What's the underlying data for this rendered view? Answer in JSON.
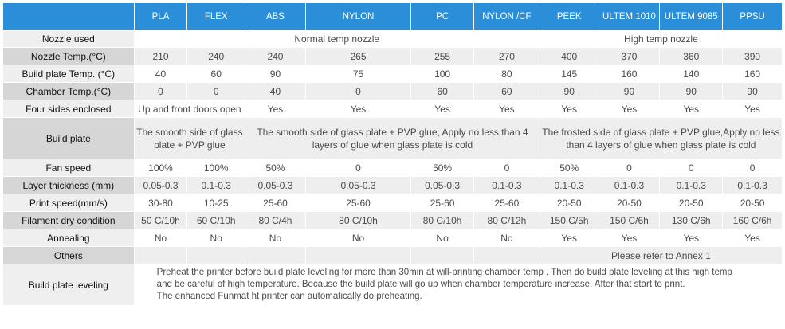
{
  "header": {
    "materials": [
      "PLA",
      "FLEX",
      "ABS",
      "NYLON",
      "PC",
      "NYLON /CF",
      "PEEK",
      "ULTEM 1010",
      "ULTEM 9085",
      "PPSU"
    ]
  },
  "rows": {
    "nozzle_used": {
      "label": "Nozzle used",
      "normal": "Normal temp nozzle",
      "high": "High temp nozzle"
    },
    "nozzle_temp": {
      "label": "Nozzle Temp.(°C)",
      "values": [
        "210",
        "240",
        "240",
        "265",
        "255",
        "270",
        "400",
        "370",
        "360",
        "390"
      ]
    },
    "bed_temp": {
      "label": "Build plate Temp. (°C)",
      "values": [
        "40",
        "60",
        "90",
        "75",
        "100",
        "80",
        "145",
        "160",
        "140",
        "160"
      ]
    },
    "chamber_temp": {
      "label": "Chamber Temp.(°C)",
      "values": [
        "0",
        "0",
        "40",
        "0",
        "60",
        "60",
        "90",
        "90",
        "90",
        "90"
      ]
    },
    "four_sides": {
      "label": "Four sides enclosed",
      "pla_flex": "Up and front doors open",
      "values": [
        "Yes",
        "Yes",
        "Yes",
        "Yes",
        "Yes",
        "Yes",
        "Yes",
        "Yes"
      ]
    },
    "build_plate": {
      "label": "Build plate",
      "pla_flex": "The smooth side of glass plate + PVP glue",
      "abs_nyloncf": "The smooth side of glass plate + PVP glue, Apply no less than 4 layers of glue when glass plate is cold",
      "high": "The frosted side of glass plate + PVP glue,Apply no less than 4 layers of glue when glass plate is cold"
    },
    "fan_speed": {
      "label": "Fan speed",
      "values": [
        "100%",
        "100%",
        "50%",
        "0",
        "50%",
        "0",
        "50%",
        "0",
        "0",
        "0"
      ]
    },
    "layer_thickness": {
      "label": "Layer thickness (mm)",
      "values": [
        "0.05-0.3",
        "0.1-0.3",
        "0.05-0.3",
        "0.05-0.3",
        "0.05-0.3",
        "0.1-0.3",
        "0.1-0.3",
        "0.1-0.3",
        "0.1-0.3",
        "0.1-0.3"
      ]
    },
    "print_speed": {
      "label": "Print speed(mm/s)",
      "values": [
        "30-80",
        "10-25",
        "25-60",
        "25-60",
        "25-60",
        "25-60",
        "20-50",
        "20-50",
        "20-50",
        "20-50"
      ]
    },
    "dry_condition": {
      "label": "Filament dry condition",
      "values": [
        "50 C/10h",
        "60 C/10h",
        "80 C/4h",
        "80 C/10h",
        "80 C/10h",
        "80 C/12h",
        "150 C/5h",
        "150 C/6h",
        "130 C/6h",
        "160 C/6h"
      ]
    },
    "annealing": {
      "label": "Annealing",
      "values": [
        "No",
        "No",
        "No",
        "No",
        "No",
        "No",
        "Yes",
        "Yes",
        "Yes",
        "Yes"
      ]
    },
    "others": {
      "label": "Others",
      "high": "Please refer to Annex 1"
    },
    "leveling": {
      "label": "Build plate leveling",
      "line1": "Preheat the printer before build plate leveling for more than 30min at will-printing chamber temp . Then do build plate leveling at this high temp",
      "line2": "and be careful of high temperature. Because the build plate will go up when chamber temperature increase. After that start to print.",
      "line3": "The enhanced Funmat ht printer can automatically do preheating."
    }
  },
  "colors": {
    "header_bg": "#2a8fd8",
    "label_bg": "#d6d6d6",
    "alt_row_bg": "#eeeeee"
  }
}
